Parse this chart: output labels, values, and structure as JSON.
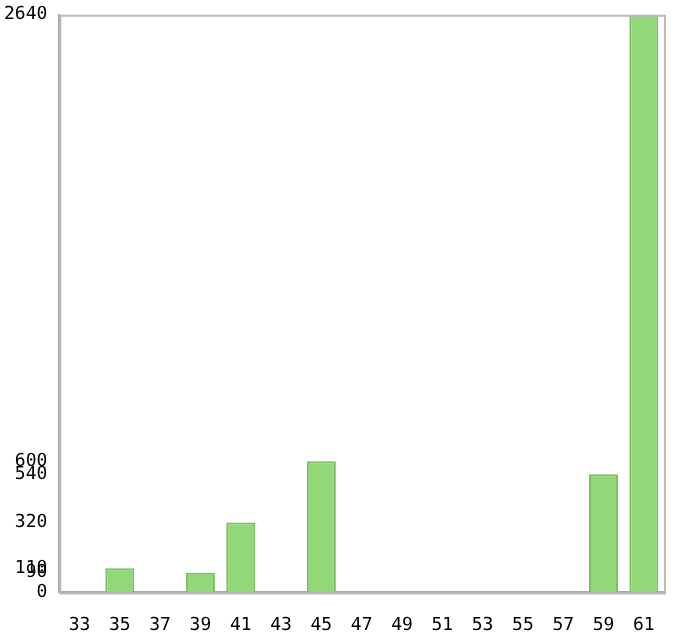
{
  "chart_data": {
    "type": "bar",
    "categories": [
      "33",
      "35",
      "37",
      "39",
      "41",
      "43",
      "45",
      "47",
      "49",
      "51",
      "53",
      "55",
      "57",
      "59",
      "61"
    ],
    "values": [
      0,
      110,
      0,
      90,
      320,
      0,
      600,
      0,
      0,
      0,
      0,
      0,
      0,
      540,
      2640
    ],
    "color": "#90d878",
    "ylim": [
      0,
      2640
    ],
    "yticks": [
      0,
      90,
      110,
      320,
      540,
      600,
      2640
    ],
    "grid": false
  }
}
